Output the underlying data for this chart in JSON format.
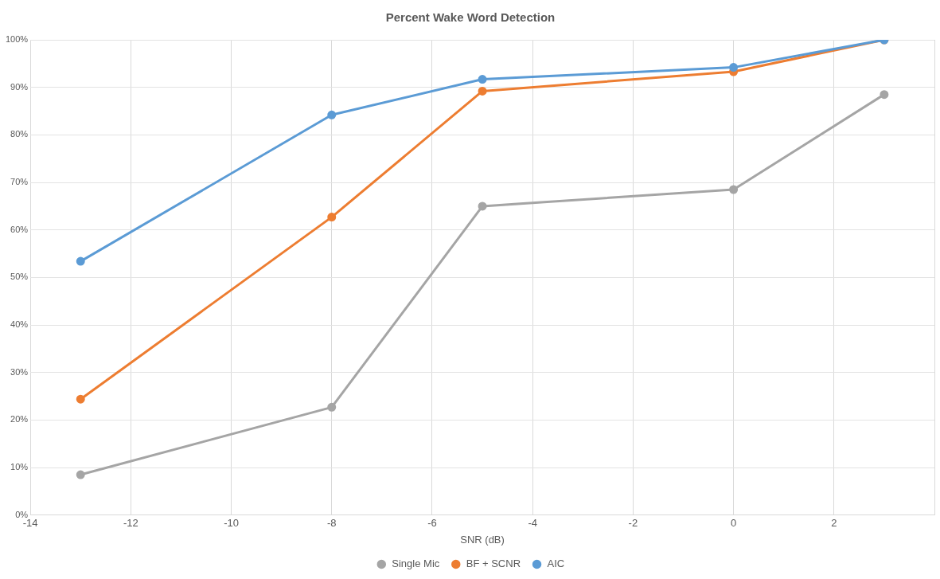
{
  "chart_data": {
    "type": "line",
    "title": "Percent Wake Word Detection",
    "xlabel": "SNR (dB)",
    "x": [
      -13,
      -8,
      -5,
      0,
      3
    ],
    "series": [
      {
        "name": "Single Mic",
        "color": "#a5a5a5",
        "values": [
          8.5,
          22.7,
          65,
          68.5,
          88.5
        ]
      },
      {
        "name": "BF + SCNR",
        "color": "#ed7d31",
        "values": [
          24.4,
          62.7,
          89.2,
          93.3,
          100
        ]
      },
      {
        "name": "AIC",
        "color": "#5b9bd5",
        "values": [
          53.4,
          84.2,
          91.7,
          94.2,
          100
        ]
      }
    ],
    "xlim": [
      -14,
      4
    ],
    "xticks": [
      -14,
      -12,
      -10,
      -8,
      -6,
      -4,
      -2,
      0,
      2,
      {
        "value": 4,
        "label": null
      }
    ],
    "ylim": [
      0,
      100
    ],
    "yticks": [
      {
        "value": 0,
        "label": "0%"
      },
      {
        "value": 10,
        "label": "10%"
      },
      {
        "value": 20,
        "label": "20%"
      },
      {
        "value": 30,
        "label": "30%"
      },
      {
        "value": 40,
        "label": "40%"
      },
      {
        "value": 50,
        "label": "50%"
      },
      {
        "value": 60,
        "label": "60%"
      },
      {
        "value": 70,
        "label": "70%"
      },
      {
        "value": 80,
        "label": "80%"
      },
      {
        "value": 90,
        "label": "90%"
      },
      {
        "value": 100,
        "label": "100%"
      }
    ],
    "grid": true,
    "legend": "bottom",
    "marker": "circle",
    "line_style": "solid"
  }
}
